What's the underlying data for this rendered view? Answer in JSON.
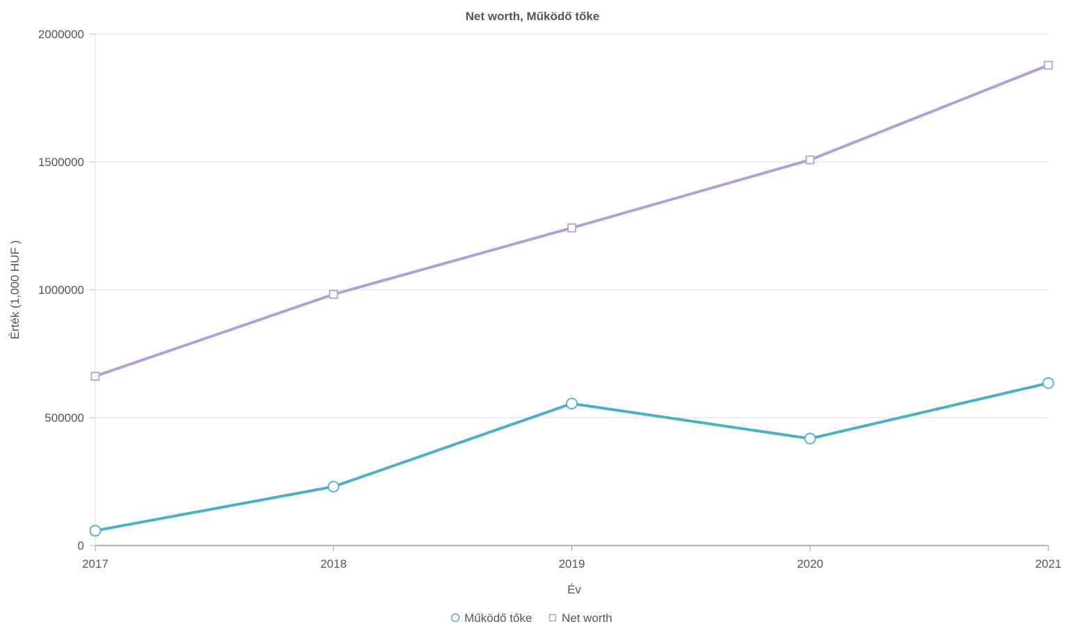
{
  "chart_data": {
    "type": "line",
    "title": "Net worth, Működő tőke",
    "xlabel": "Év",
    "ylabel": "Érték (1,000 HUF )",
    "x": [
      "2017",
      "2018",
      "2019",
      "2020",
      "2021"
    ],
    "ylim": [
      0,
      2000000
    ],
    "y_ticks": [
      "0",
      "500000",
      "1000000",
      "1500000",
      "2000000"
    ],
    "y_tick_values": [
      0,
      500000,
      1000000,
      1500000,
      2000000
    ],
    "grid": true,
    "legend_position": "bottom",
    "series": [
      {
        "name": "Működő tőke",
        "values": [
          58000,
          230000,
          555000,
          418000,
          635000
        ],
        "color": "#4bafc8",
        "marker": "circle"
      },
      {
        "name": "Net worth",
        "values": [
          662000,
          982000,
          1242000,
          1508000,
          1878000
        ],
        "color": "#b39ddb",
        "marker": "square"
      }
    ]
  }
}
